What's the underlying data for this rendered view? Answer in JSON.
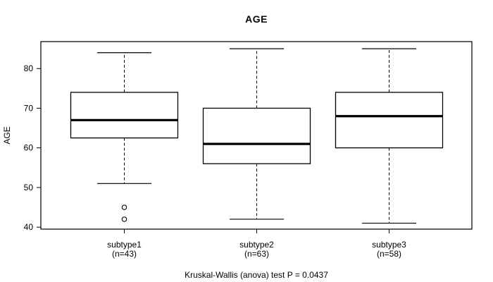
{
  "title": "AGE",
  "caption": "Kruskal-Wallis (anova) test P = 0.0437",
  "chart_data": {
    "type": "boxplot",
    "title": "AGE",
    "xlabel": "",
    "ylabel": "AGE",
    "ylim": [
      39.5,
      86.8
    ],
    "yticks": [
      40,
      50,
      60,
      70,
      80
    ],
    "grid": false,
    "legend": null,
    "line_color": "#000000",
    "background_color": "#ffffff",
    "groups": [
      {
        "label": "subtype1",
        "sublabel": "(n=43)",
        "n": 43,
        "whisker_low": 51,
        "q1": 62.5,
        "median": 67,
        "q3": 74,
        "whisker_high": 84,
        "outliers": [
          45,
          42
        ]
      },
      {
        "label": "subtype2",
        "sublabel": "(n=63)",
        "n": 63,
        "whisker_low": 42,
        "q1": 56,
        "median": 61,
        "q3": 70,
        "whisker_high": 85,
        "outliers": []
      },
      {
        "label": "subtype3",
        "sublabel": "(n=58)",
        "n": 58,
        "whisker_low": 41,
        "q1": 60,
        "median": 68,
        "q3": 74,
        "whisker_high": 85,
        "outliers": []
      }
    ],
    "annotation": "Kruskal-Wallis (anova) test P = 0.0437"
  }
}
